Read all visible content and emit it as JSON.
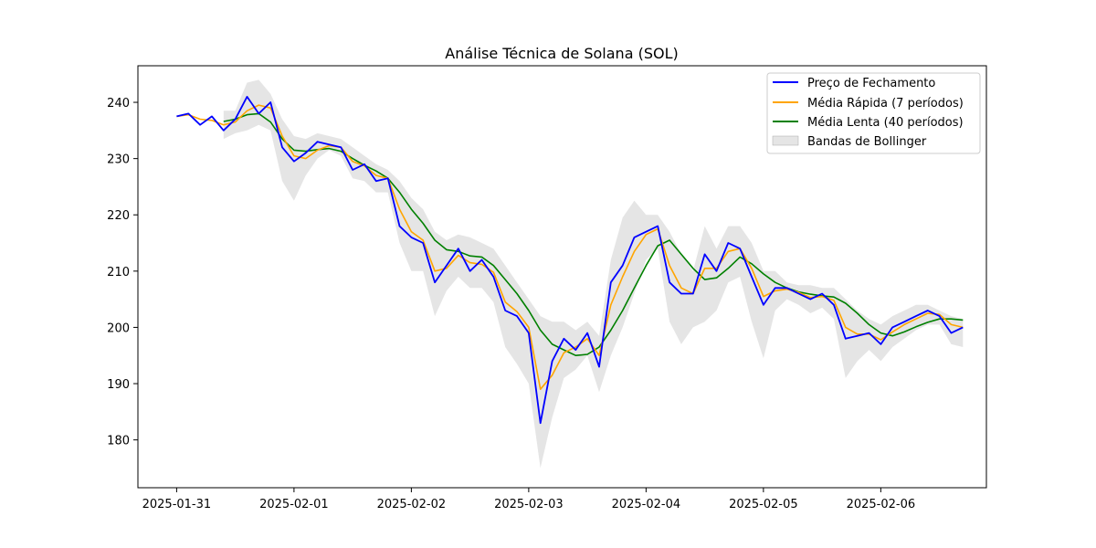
{
  "chart_data": {
    "type": "line",
    "title": "Análise Técnica de Solana (SOL)",
    "xlabel": "",
    "ylabel": "",
    "x_ticks": [
      "2025-01-31",
      "2025-02-01",
      "2025-02-02",
      "2025-02-03",
      "2025-02-04",
      "2025-02-05",
      "2025-02-06"
    ],
    "y_ticks": [
      180,
      190,
      200,
      210,
      220,
      230,
      240
    ],
    "xlim_days": [
      -0.33,
      6.9
    ],
    "ylim": [
      171.5,
      246.5
    ],
    "grid": false,
    "legend_position": "top-right",
    "x_days": [
      0.0,
      0.1,
      0.2,
      0.3,
      0.4,
      0.5,
      0.6,
      0.7,
      0.8,
      0.9,
      1.0,
      1.1,
      1.2,
      1.3,
      1.4,
      1.5,
      1.6,
      1.7,
      1.8,
      1.9,
      2.0,
      2.1,
      2.2,
      2.3,
      2.4,
      2.5,
      2.6,
      2.7,
      2.8,
      2.9,
      3.0,
      3.1,
      3.2,
      3.3,
      3.4,
      3.5,
      3.6,
      3.7,
      3.8,
      3.9,
      4.0,
      4.1,
      4.2,
      4.3,
      4.4,
      4.5,
      4.6,
      4.7,
      4.8,
      4.9,
      5.0,
      5.1,
      5.2,
      5.3,
      5.4,
      5.5,
      5.6,
      5.7,
      5.8,
      5.9,
      6.0,
      6.1,
      6.2,
      6.3,
      6.4,
      6.5,
      6.6,
      6.7
    ],
    "series": [
      {
        "name": "Preço de Fechamento",
        "color": "#0000ff",
        "values": [
          237.5,
          238.0,
          236.0,
          237.5,
          235.0,
          237.0,
          241.0,
          238.0,
          240.0,
          232.0,
          229.5,
          231.0,
          233.0,
          232.5,
          232.0,
          228.0,
          229.0,
          226.0,
          226.5,
          218.0,
          216.0,
          215.0,
          208.0,
          211.0,
          214.0,
          210.0,
          212.0,
          209.0,
          203.0,
          202.0,
          199.0,
          183.0,
          194.0,
          198.0,
          196.0,
          199.0,
          193.0,
          208.0,
          211.0,
          216.0,
          217.0,
          218.0,
          208.0,
          206.0,
          206.0,
          213.0,
          210.0,
          215.0,
          214.0,
          209.0,
          204.0,
          207.0,
          207.0,
          206.0,
          205.0,
          206.0,
          204.0,
          198.0,
          198.5,
          199.0,
          197.0,
          200.0,
          201.0,
          202.0,
          203.0,
          202.0,
          199.0,
          200.0
        ]
      },
      {
        "name": "Média Rápida (7 períodos)",
        "color": "#ffa500",
        "values": [
          237.5,
          237.8,
          237.0,
          236.8,
          236.0,
          236.5,
          238.5,
          239.5,
          239.0,
          234.0,
          230.5,
          230.0,
          231.5,
          232.3,
          232.0,
          229.5,
          228.7,
          227.0,
          226.5,
          221.0,
          217.0,
          215.5,
          210.0,
          210.5,
          212.8,
          211.5,
          211.2,
          209.8,
          204.5,
          202.8,
          200.0,
          189.0,
          191.5,
          195.5,
          196.5,
          198.0,
          195.0,
          204.0,
          209.0,
          213.5,
          216.5,
          217.5,
          211.0,
          207.0,
          206.0,
          210.5,
          210.5,
          213.5,
          214.0,
          210.5,
          205.5,
          206.5,
          206.8,
          206.2,
          205.3,
          205.5,
          204.8,
          200.0,
          198.8,
          198.8,
          197.8,
          199.2,
          200.5,
          201.5,
          202.5,
          202.3,
          200.5,
          200.0
        ]
      },
      {
        "name": "Média Lenta (40 períodos)",
        "color": "#008000",
        "values": [
          null,
          null,
          null,
          null,
          236.6,
          237.0,
          237.8,
          238.0,
          236.5,
          233.5,
          231.5,
          231.3,
          231.6,
          231.8,
          231.3,
          230.0,
          228.8,
          227.8,
          226.5,
          224.0,
          221.0,
          218.5,
          215.5,
          213.8,
          213.5,
          212.7,
          212.5,
          211.0,
          208.5,
          206.0,
          203.0,
          199.5,
          197.0,
          196.0,
          195.0,
          195.2,
          196.5,
          199.5,
          203.0,
          207.0,
          211.0,
          214.5,
          215.5,
          213.0,
          210.5,
          208.5,
          208.8,
          210.5,
          212.5,
          211.3,
          209.5,
          208.0,
          207.0,
          206.3,
          205.9,
          205.6,
          205.4,
          204.3,
          202.5,
          200.5,
          199.0,
          198.5,
          199.2,
          200.1,
          200.9,
          201.5,
          201.5,
          201.3
        ]
      },
      {
        "name": "Bandas de Bollinger",
        "color": "#d3d3d3",
        "upper": [
          null,
          null,
          null,
          null,
          238.5,
          238.5,
          243.5,
          244.0,
          241.5,
          237.0,
          234.0,
          233.5,
          234.5,
          234.0,
          233.5,
          232.0,
          230.5,
          229.0,
          228.0,
          226.0,
          223.0,
          221.0,
          217.0,
          215.5,
          216.5,
          216.0,
          215.0,
          214.0,
          211.0,
          208.0,
          205.0,
          202.0,
          201.0,
          201.0,
          199.5,
          201.0,
          198.5,
          212.0,
          219.5,
          222.5,
          220.0,
          220.0,
          217.0,
          213.0,
          210.0,
          218.0,
          214.0,
          218.0,
          218.0,
          215.0,
          210.0,
          210.0,
          208.0,
          207.5,
          207.5,
          207.0,
          207.0,
          205.0,
          203.0,
          201.5,
          200.5,
          202.0,
          203.0,
          204.0,
          204.0,
          203.0,
          202.0,
          201.5
        ],
        "lower": [
          null,
          null,
          null,
          null,
          233.5,
          234.5,
          235.0,
          236.0,
          235.0,
          226.0,
          222.5,
          227.0,
          230.0,
          231.5,
          230.5,
          226.5,
          226.0,
          224.0,
          224.0,
          215.0,
          210.0,
          210.0,
          202.0,
          206.5,
          209.0,
          207.0,
          207.0,
          204.5,
          196.5,
          193.5,
          190.0,
          175.0,
          184.0,
          191.0,
          192.5,
          195.0,
          188.5,
          195.0,
          200.0,
          206.0,
          212.0,
          214.0,
          201.0,
          197.0,
          200.0,
          201.0,
          203.0,
          208.0,
          209.0,
          201.0,
          194.5,
          203.0,
          205.0,
          204.0,
          202.5,
          203.5,
          201.5,
          191.0,
          194.0,
          196.0,
          194.0,
          196.5,
          198.0,
          199.5,
          200.5,
          200.5,
          197.0,
          196.5
        ]
      }
    ]
  }
}
